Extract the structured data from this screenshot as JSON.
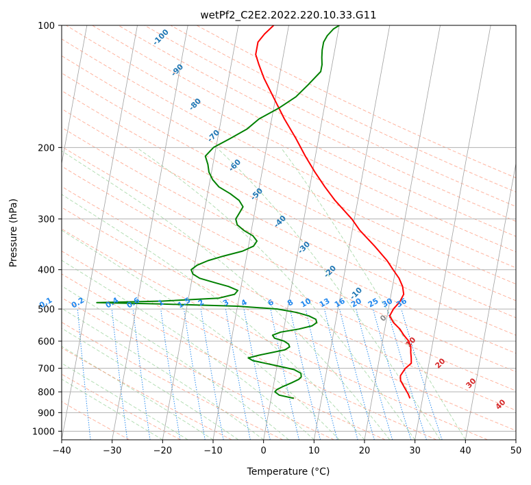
{
  "chart_data": {
    "type": "line",
    "title": "wetPf2_C2E2.2022.220.10.33.G11",
    "xlabel": "Temperature (°C)",
    "ylabel": "Pressure (hPa)",
    "xlim": [
      -40,
      50
    ],
    "ylim": [
      1050,
      100
    ],
    "y_scale": "log",
    "x_ticks": [
      -40,
      -30,
      -20,
      -10,
      0,
      10,
      20,
      30,
      40,
      50
    ],
    "x_tick_labels": [
      "−40",
      "−30",
      "−20",
      "−10",
      "0",
      "10",
      "20",
      "30",
      "40",
      "50"
    ],
    "y_ticks": [
      100,
      200,
      300,
      400,
      500,
      600,
      700,
      800,
      900,
      1000
    ],
    "y_tick_labels": [
      "100",
      "200",
      "300",
      "400",
      "500",
      "600",
      "700",
      "800",
      "900",
      "1000"
    ],
    "grid": true,
    "colors": {
      "temperature": "#ff0000",
      "dewpoint": "#008000",
      "isotherm": "#a0a0a0",
      "dry_adiabat": "#ff8866",
      "moist_adiabat": "#66bb66",
      "mixing_ratio": "#2288ee",
      "isotherm_label": "#1f77b4",
      "adiabat_label": "#d62728",
      "zero_label": "#888888"
    },
    "series": [
      {
        "key": "temperature",
        "pressure": [
          830,
          810,
          780,
          750,
          730,
          700,
          680,
          660,
          640,
          620,
          600,
          580,
          560,
          540,
          520,
          500,
          480,
          460,
          440,
          420,
          400,
          380,
          350,
          320,
          300,
          270,
          250,
          230,
          210,
          190,
          170,
          150,
          135,
          125,
          118,
          110,
          105,
          100
        ],
        "temp": [
          27.5,
          27,
          26,
          25,
          24.8,
          25.5,
          26.5,
          26.3,
          26,
          25.8,
          25.2,
          24,
          23,
          21.5,
          20.5,
          21,
          22,
          22.5,
          22,
          21,
          19.5,
          18,
          15,
          11.5,
          9.5,
          5.5,
          3,
          0.5,
          -2,
          -4.5,
          -7.5,
          -10.5,
          -13,
          -14.5,
          -15.5,
          -15.5,
          -14.5,
          -13
        ]
      },
      {
        "key": "dewpoint",
        "pressure": [
          830,
          815,
          800,
          790,
          775,
          760,
          745,
          735,
          720,
          705,
          690,
          680,
          670,
          660,
          650,
          640,
          630,
          620,
          610,
          600,
          590,
          580,
          570,
          560,
          550,
          540,
          530,
          520,
          510,
          500,
          492,
          486,
          482,
          478,
          470,
          460,
          450,
          440,
          430,
          420,
          410,
          400,
          390,
          380,
          370,
          360,
          350,
          340,
          330,
          320,
          310,
          300,
          290,
          280,
          270,
          260,
          250,
          240,
          230,
          220,
          210,
          200,
          190,
          180,
          170,
          160,
          150,
          140,
          130,
          125,
          120,
          115,
          110,
          106,
          102,
          100
        ],
        "temp": [
          4.5,
          1.5,
          0.5,
          0.8,
          2,
          3.5,
          4.8,
          5.2,
          5,
          3.5,
          0,
          -2.5,
          -5,
          -6,
          -4,
          -1.5,
          1,
          1.8,
          1.5,
          0.5,
          -1.5,
          -2,
          -0.5,
          3,
          5.5,
          6.3,
          6,
          4.5,
          2,
          -2,
          -10,
          -25,
          -38,
          -25,
          -14,
          -11,
          -10.5,
          -12.5,
          -15.5,
          -18.5,
          -20,
          -20.5,
          -19.5,
          -17.5,
          -14.5,
          -11,
          -9,
          -8.5,
          -9.5,
          -11.5,
          -13,
          -13.5,
          -13,
          -12.5,
          -13.5,
          -15.5,
          -18,
          -19.5,
          -20.5,
          -21,
          -21.8,
          -20.5,
          -17.5,
          -14.5,
          -12.5,
          -9,
          -6,
          -4,
          -2,
          -2,
          -2.3,
          -2.5,
          -2.5,
          -2,
          -1,
          0
        ]
      }
    ],
    "isotherm_labels": [
      "-100",
      "-90",
      "-80",
      "-70",
      "-60",
      "-50",
      "-40",
      "-30",
      "-20",
      "-10",
      "0"
    ],
    "dry_adiabat_labels": [
      "10",
      "20",
      "30",
      "40"
    ],
    "mixing_ratio_labels": [
      "0.1",
      "0.2",
      "0.4",
      "0.6",
      "1",
      "1.5",
      "2",
      "3",
      "4",
      "6",
      "8",
      "10",
      "13",
      "16",
      "20",
      "25",
      "30",
      "36"
    ],
    "mixing_ratio_values": [
      0.1,
      0.2,
      0.4,
      0.6,
      1,
      1.5,
      2,
      3,
      4,
      6,
      8,
      10,
      13,
      16,
      20,
      25,
      30,
      36
    ]
  }
}
